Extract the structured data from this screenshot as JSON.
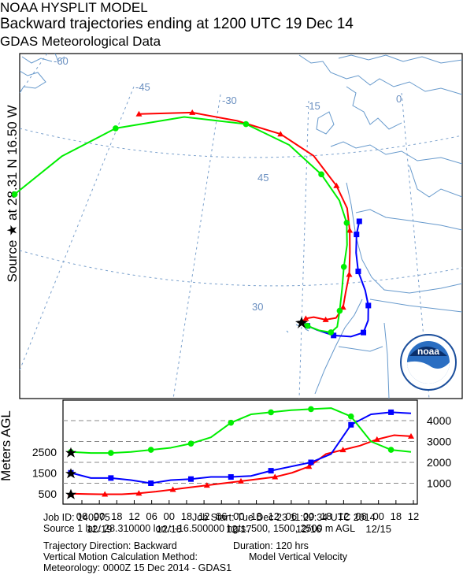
{
  "header": {
    "line1": "NOAA HYSPLIT MODEL",
    "line2": "Backward trajectories ending at 1200 UTC 19 Dec 14",
    "line3": "GDAS Meteorological Data"
  },
  "side_label": "Source ★ at 28.31 N 16.50 W",
  "agl_label": "Meters AGL",
  "map": {
    "longitude_labels": [
      "-60",
      "-45",
      "-30",
      "-15",
      "0"
    ],
    "latitude_labels": [
      "45",
      "30"
    ],
    "logo_text": "noaa"
  },
  "colors": {
    "red": "#ff0000",
    "blue": "#0000ff",
    "green": "#00ee00",
    "land": "#6699cc",
    "grid": "#7aa0cc"
  },
  "chart_data": {
    "type": "line",
    "title": "Backward trajectories ending at 1200 UTC 19 Dec 14",
    "series": [
      {
        "name": "500 m AGL",
        "color": "red",
        "path_lonlat": [
          [
            -16.5,
            28.3
          ],
          [
            -15.8,
            28.8
          ],
          [
            -14.5,
            29.0
          ],
          [
            -12.5,
            28.7
          ],
          [
            -10.8,
            29.0
          ],
          [
            -9.8,
            30.5
          ],
          [
            -9.6,
            32.5
          ],
          [
            -9.3,
            35
          ],
          [
            -9.5,
            38
          ],
          [
            -9.8,
            41
          ],
          [
            -10.4,
            44
          ],
          [
            -12,
            47
          ],
          [
            -15,
            51
          ],
          [
            -19,
            54
          ],
          [
            -24,
            56
          ],
          [
            -29,
            57.5
          ],
          [
            -35,
            58
          ]
        ],
        "height_m": [
          500,
          480,
          470,
          470,
          520,
          600,
          700,
          800,
          900,
          1000,
          1100,
          1200,
          1300,
          1500,
          1800,
          2400,
          2600,
          2800,
          3100,
          3300,
          3250
        ]
      },
      {
        "name": "1500 m AGL",
        "color": "blue",
        "path_lonlat": [
          [
            -16.5,
            28.3
          ],
          [
            -15.5,
            27.8
          ],
          [
            -14,
            27.3
          ],
          [
            -11,
            26.6
          ],
          [
            -8,
            26.6
          ],
          [
            -6,
            27.3
          ],
          [
            -5.5,
            29
          ],
          [
            -5.8,
            31
          ],
          [
            -6.6,
            33
          ],
          [
            -8,
            35.5
          ],
          [
            -8.6,
            38
          ],
          [
            -8.8,
            40.5
          ],
          [
            -8.6,
            42.3
          ]
        ],
        "height_m": [
          1500,
          1250,
          1250,
          1150,
          1000,
          1150,
          1200,
          1300,
          1300,
          1350,
          1600,
          1800,
          2000,
          2400,
          3800,
          4300,
          4400,
          4350
        ]
      },
      {
        "name": "2500 m AGL",
        "color": "green",
        "path_lonlat": [
          [
            -16.5,
            28.3
          ],
          [
            -15.5,
            27.8
          ],
          [
            -13.5,
            27.2
          ],
          [
            -11.5,
            27.0
          ],
          [
            -10.5,
            27.8
          ],
          [
            -10.3,
            30
          ],
          [
            -10.2,
            33
          ],
          [
            -10.2,
            36
          ],
          [
            -10.0,
            39
          ],
          [
            -10.3,
            42
          ],
          [
            -11.5,
            45
          ],
          [
            -14,
            48.5
          ],
          [
            -18,
            52.5
          ],
          [
            -23,
            55.5
          ],
          [
            -30,
            57
          ],
          [
            -38,
            56.5
          ],
          [
            -45,
            54
          ],
          [
            -52,
            50.5
          ]
        ],
        "height_m": [
          2500,
          2450,
          2450,
          2500,
          2600,
          2700,
          2900,
          3200,
          3900,
          4300,
          4400,
          4500,
          4550,
          4600,
          4200,
          3000,
          2600,
          2500
        ]
      }
    ],
    "time_axis": {
      "hour_ticks": [
        "06",
        "00",
        "18",
        "12",
        "06",
        "00",
        "18",
        "12",
        "06",
        "00",
        "18",
        "12",
        "06",
        "00",
        "18",
        "12",
        "06",
        "00",
        "18",
        "12"
      ],
      "date_labels": [
        "12/19",
        "12/18",
        "12/17",
        "12/16",
        "12/15"
      ]
    },
    "height_axis": {
      "right_ticks": [
        "4000",
        "3000",
        "2000",
        "1000"
      ],
      "left_start_labels": [
        "2500",
        "1500",
        "500"
      ]
    }
  },
  "info": {
    "job_id": "Job ID: 140975",
    "job_start": "Job Start: Tue Dec 23 11:29:34 UTC 2014",
    "source": "Source 1 lat.: 28.310000  lon.: -16.500000  hgts: 500, 1500, 2500 m AGL",
    "direction": "Trajectory Direction: Backward",
    "duration": "Duration: 120 hrs",
    "vertical": "Vertical Motion Calculation Method:",
    "vertical_value": "Model Vertical Velocity",
    "meteorology": "Meteorology: 0000Z 15 Dec 2014 - GDAS1"
  }
}
